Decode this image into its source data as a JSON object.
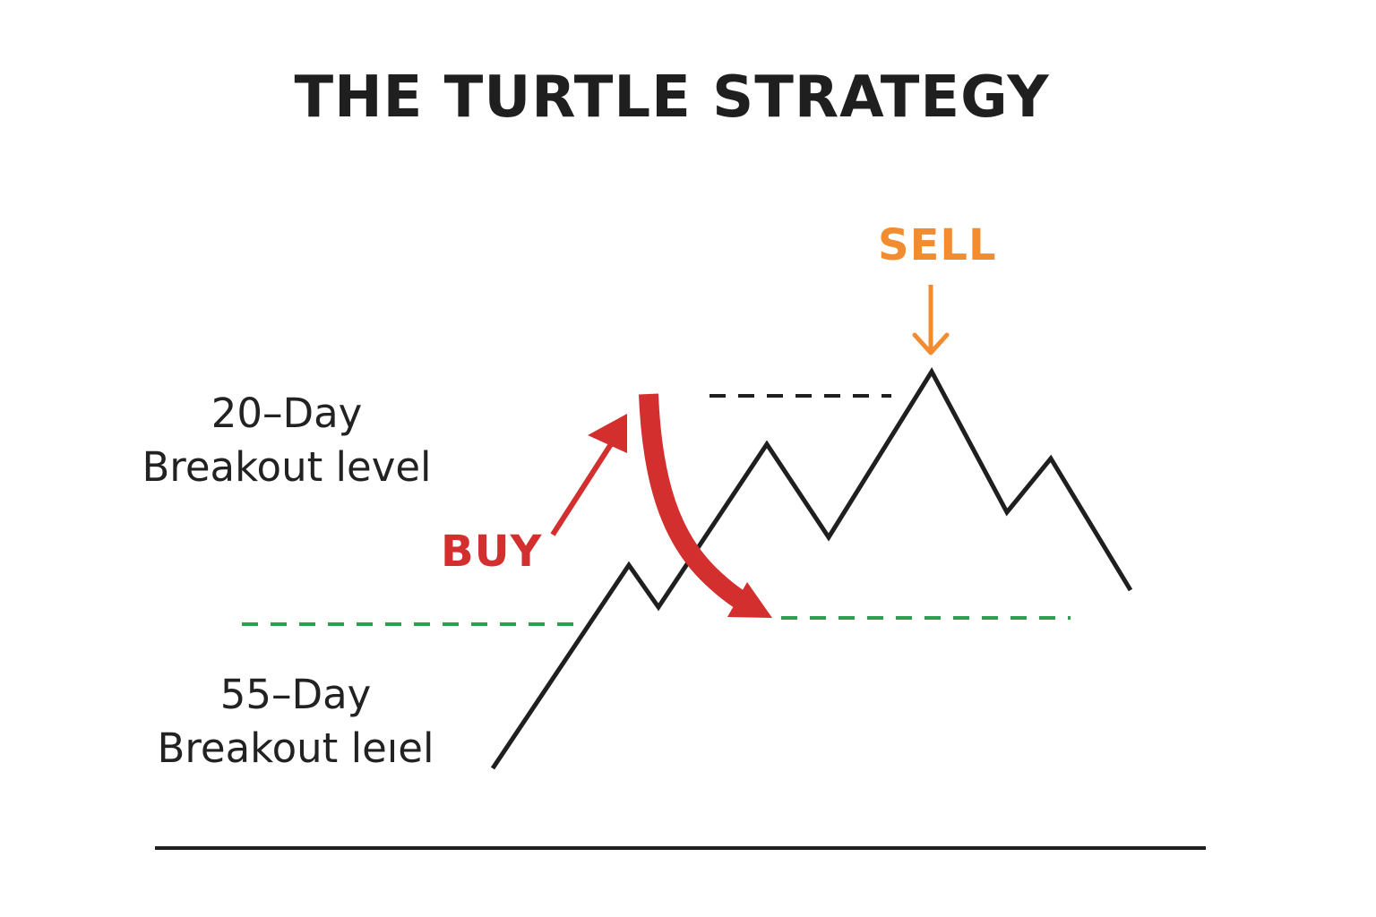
{
  "title": "THE TURTLE STRATEGY",
  "level_20": {
    "line1": "20–Day",
    "line2": "Breakout level"
  },
  "level_55": {
    "line1": "55–Day",
    "line2": "Breakout leıel"
  },
  "buy_label": "BUY",
  "sell_label": "SELL",
  "colors": {
    "price_line": "#1f1f1f",
    "level_20_line": "#1f1f1f",
    "level_55_line": "#2e9e50",
    "buy": "#d32f2f",
    "sell": "#f28c30",
    "title": "#1f1f1f"
  }
}
